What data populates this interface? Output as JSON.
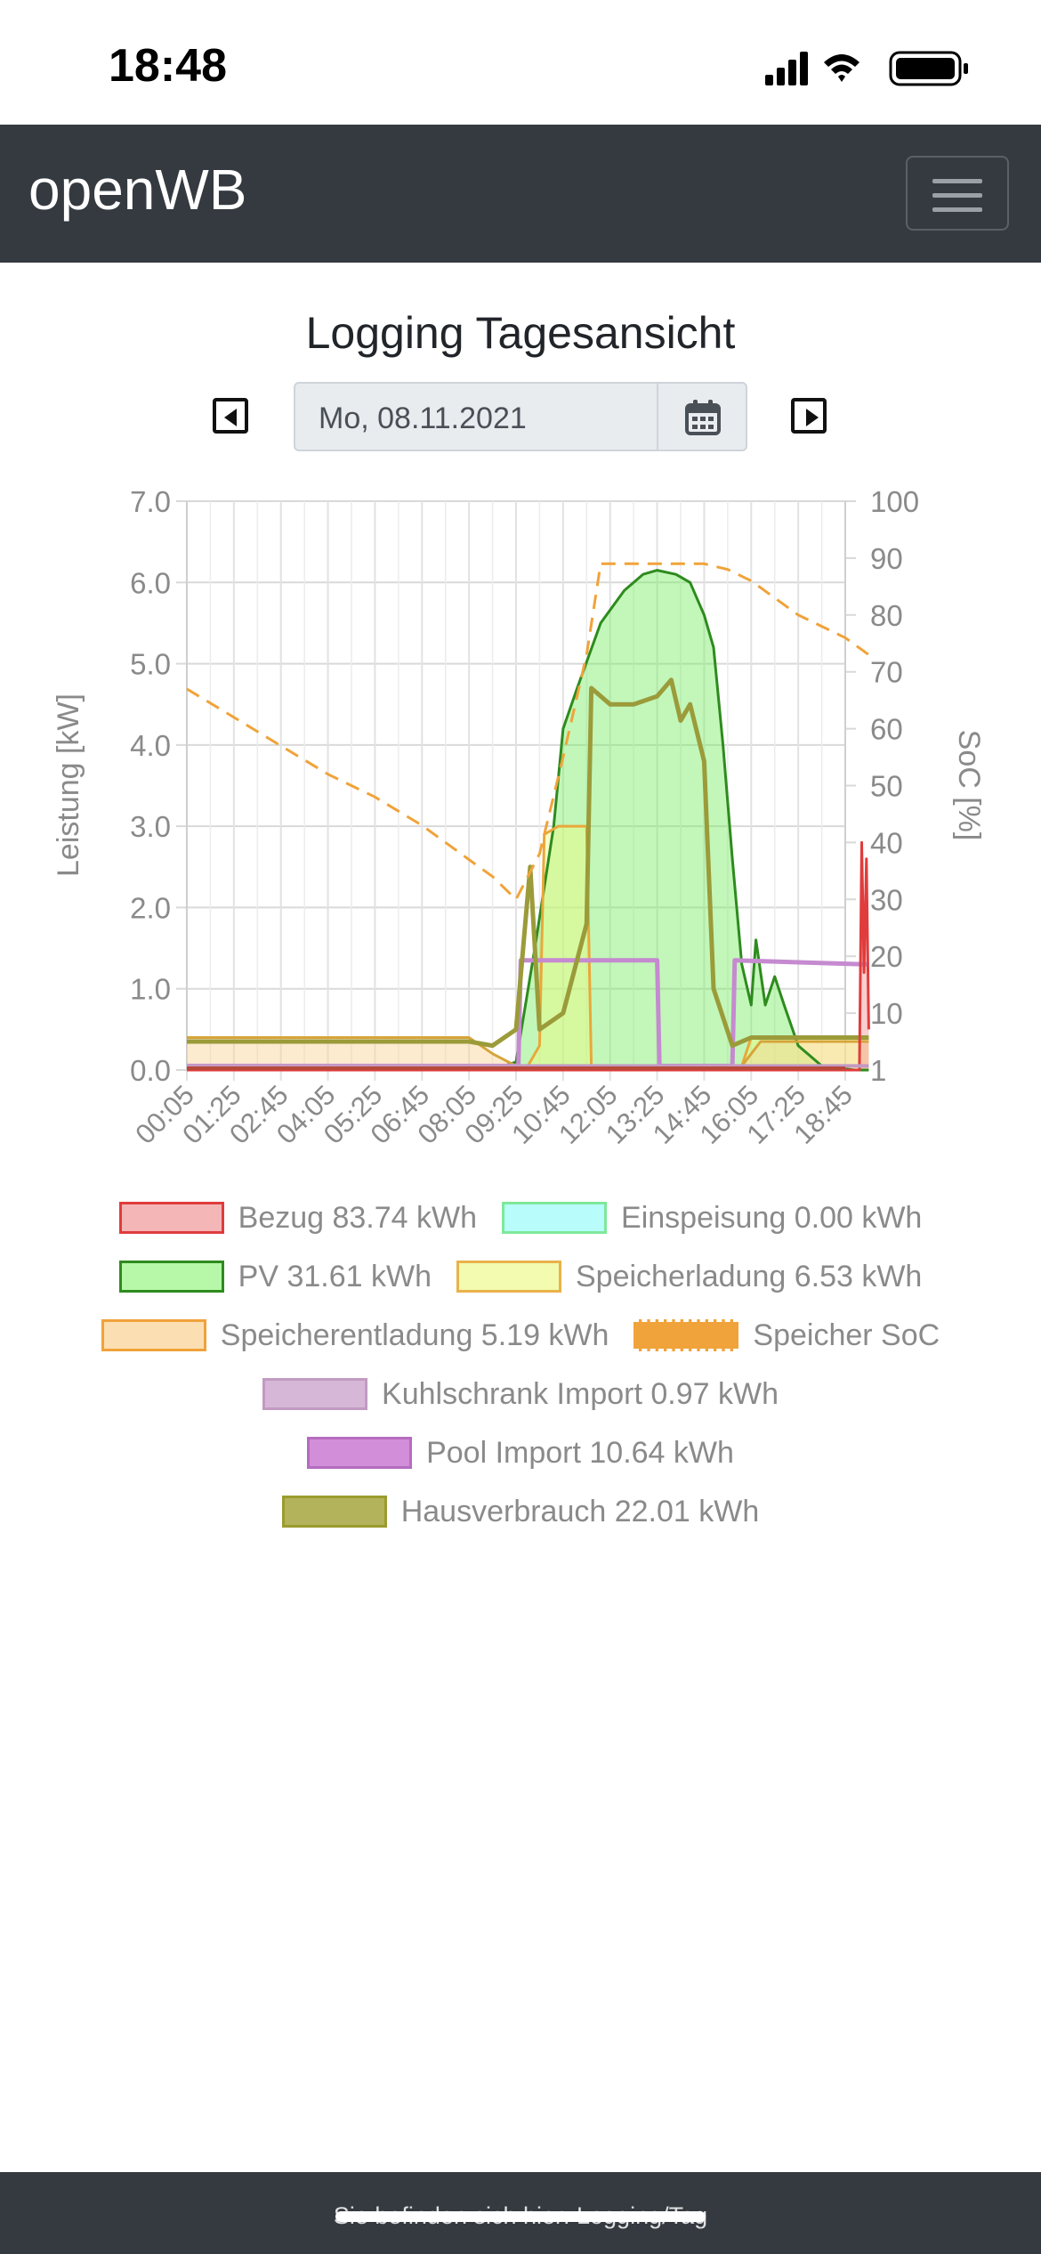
{
  "status_bar": {
    "time": "18:48"
  },
  "navbar": {
    "brand": "openWB"
  },
  "page": {
    "title": "Logging Tagesansicht",
    "date_value": "Mo, 08.11.2021"
  },
  "footer": {
    "text": "Sie befinden sich hier: Logging/Tag"
  },
  "legend": [
    {
      "label": "Bezug 83.74 kWh",
      "fill": "#f4b6b6",
      "border": "#e03c3c"
    },
    {
      "label": "Einspeisung 0.00 kWh",
      "fill": "#b8fcfc",
      "border": "#7ee89a"
    },
    {
      "label": "PV 31.61 kWh",
      "fill": "#b6f7a8",
      "border": "#2e8b1e"
    },
    {
      "label": "Speicherladung 6.53 kWh",
      "fill": "#f2fbb0",
      "border": "#e9b24a"
    },
    {
      "label": "Speicherentladung 5.19 kWh",
      "fill": "#fbdfb3",
      "border": "#f0a23a"
    },
    {
      "label": "Speicher SoC",
      "fill": "#f0a33a",
      "border": "#f0a33a",
      "dashed": true
    },
    {
      "label": "Kuhlschrank Import 0.97 kWh",
      "fill": "#d7b7d7",
      "border": "#c29ac2"
    },
    {
      "label": "Pool Import 10.64 kWh",
      "fill": "#d28ed8",
      "border": "#b56cc0"
    },
    {
      "label": "Hausverbrauch 22.01 kWh",
      "fill": "#b3b35b",
      "border": "#9b9b2f"
    }
  ],
  "chart_data": {
    "type": "area",
    "x_ticks": [
      "00:05",
      "01:25",
      "02:45",
      "04:05",
      "05:25",
      "06:45",
      "08:05",
      "09:25",
      "10:45",
      "12:05",
      "13:25",
      "14:45",
      "16:05",
      "17:25",
      "18:45"
    ],
    "y_left": {
      "label": "Leistung [kW]",
      "ticks": [
        "0.0",
        "1.0",
        "2.0",
        "3.0",
        "4.0",
        "5.0",
        "6.0",
        "7.0"
      ],
      "range": [
        0,
        7
      ]
    },
    "y_right": {
      "label": "SoC [%]",
      "ticks": [
        "1",
        "10",
        "20",
        "30",
        "40",
        "50",
        "60",
        "70",
        "80",
        "90",
        "100"
      ],
      "range": [
        0,
        100
      ]
    },
    "grid": true,
    "series": [
      {
        "name": "PV",
        "unit": "kW",
        "points": [
          [
            0,
            0
          ],
          [
            6.5,
            0
          ],
          [
            7.0,
            0.1
          ],
          [
            7.4,
            1.5
          ],
          [
            7.8,
            3.0
          ],
          [
            8.0,
            4.2
          ],
          [
            8.3,
            4.7
          ],
          [
            8.8,
            5.5
          ],
          [
            9.3,
            5.9
          ],
          [
            9.7,
            6.1
          ],
          [
            10.0,
            6.15
          ],
          [
            10.4,
            6.1
          ],
          [
            10.7,
            6.0
          ],
          [
            11.0,
            5.6
          ],
          [
            11.2,
            5.2
          ],
          [
            11.4,
            4.0
          ],
          [
            11.6,
            2.6
          ],
          [
            11.8,
            1.3
          ],
          [
            12.0,
            0.8
          ],
          [
            12.1,
            1.6
          ],
          [
            12.3,
            0.8
          ],
          [
            12.5,
            1.15
          ],
          [
            12.7,
            0.8
          ],
          [
            13.0,
            0.3
          ],
          [
            13.5,
            0.05
          ],
          [
            14.2,
            0
          ],
          [
            14.5,
            0
          ]
        ]
      },
      {
        "name": "Speicherladung",
        "unit": "kW",
        "points": [
          [
            0,
            0
          ],
          [
            7.2,
            0
          ],
          [
            7.5,
            0.3
          ],
          [
            7.6,
            2.9
          ],
          [
            7.9,
            3.0
          ],
          [
            8.5,
            3.0
          ],
          [
            8.6,
            0.05
          ],
          [
            11.8,
            0.05
          ],
          [
            12.0,
            0.4
          ],
          [
            14.5,
            0.4
          ]
        ]
      },
      {
        "name": "Speicherentladung",
        "unit": "kW",
        "points": [
          [
            0,
            0.4
          ],
          [
            6.0,
            0.4
          ],
          [
            6.5,
            0.2
          ],
          [
            7.0,
            0.05
          ],
          [
            11.8,
            0.05
          ],
          [
            12.2,
            0.35
          ],
          [
            14.5,
            0.35
          ]
        ]
      },
      {
        "name": "Pool Import",
        "unit": "kW",
        "points": [
          [
            0,
            0.05
          ],
          [
            7.05,
            0.05
          ],
          [
            7.1,
            1.35
          ],
          [
            10.0,
            1.35
          ],
          [
            10.05,
            0.05
          ],
          [
            11.6,
            0.05
          ],
          [
            11.65,
            1.35
          ],
          [
            14.4,
            1.3
          ],
          [
            14.5,
            1.3
          ]
        ]
      },
      {
        "name": "Hausverbrauch",
        "unit": "kW",
        "points": [
          [
            0,
            0.35
          ],
          [
            6.0,
            0.35
          ],
          [
            6.5,
            0.3
          ],
          [
            7.0,
            0.5
          ],
          [
            7.3,
            2.5
          ],
          [
            7.5,
            0.5
          ],
          [
            8.0,
            0.7
          ],
          [
            8.5,
            1.8
          ],
          [
            8.6,
            4.7
          ],
          [
            9.0,
            4.5
          ],
          [
            9.5,
            4.5
          ],
          [
            10.0,
            4.6
          ],
          [
            10.3,
            4.8
          ],
          [
            10.5,
            4.3
          ],
          [
            10.7,
            4.5
          ],
          [
            11.0,
            3.8
          ],
          [
            11.2,
            1.0
          ],
          [
            11.6,
            0.3
          ],
          [
            12.0,
            0.4
          ],
          [
            14.5,
            0.4
          ]
        ]
      },
      {
        "name": "Bezug",
        "unit": "kW",
        "points": [
          [
            0,
            0
          ],
          [
            14.3,
            0
          ],
          [
            14.35,
            2.8
          ],
          [
            14.4,
            1.2
          ],
          [
            14.45,
            2.6
          ],
          [
            14.5,
            0.5
          ]
        ]
      },
      {
        "name": "Kuhlschrank Import",
        "unit": "kW",
        "points": [
          [
            0,
            0.05
          ],
          [
            14.5,
            0.05
          ]
        ]
      },
      {
        "name": "Speicher SoC",
        "unit": "%",
        "points": [
          [
            0,
            67
          ],
          [
            1.0,
            62
          ],
          [
            2.0,
            57
          ],
          [
            3.0,
            52
          ],
          [
            4.0,
            48
          ],
          [
            5.0,
            43
          ],
          [
            6.0,
            37
          ],
          [
            6.5,
            34
          ],
          [
            7.0,
            30
          ],
          [
            7.5,
            38
          ],
          [
            8.0,
            55
          ],
          [
            8.5,
            73
          ],
          [
            8.8,
            89
          ],
          [
            9.2,
            89
          ],
          [
            11.0,
            89
          ],
          [
            11.5,
            88
          ],
          [
            12.0,
            86
          ],
          [
            13.0,
            80
          ],
          [
            14.0,
            76
          ],
          [
            14.5,
            73
          ]
        ]
      }
    ]
  }
}
